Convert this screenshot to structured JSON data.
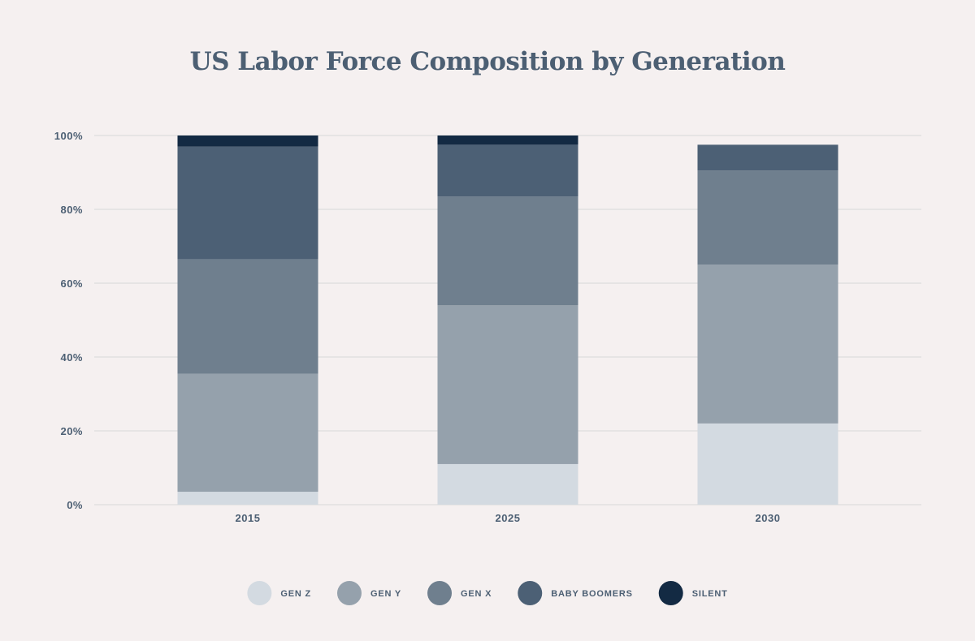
{
  "chart_data": {
    "type": "bar",
    "stacked": true,
    "title": "US Labor Force Composition by Generation",
    "categories": [
      "2015",
      "2025",
      "2030"
    ],
    "ylim": [
      0,
      100
    ],
    "y_ticks": [
      "0%",
      "20%",
      "40%",
      "60%",
      "80%",
      "100%"
    ],
    "grid": true,
    "legend_position": "bottom",
    "series": [
      {
        "name": "GEN Z",
        "color": "#d3dae1",
        "values": [
          3.5,
          11,
          22
        ]
      },
      {
        "name": "GEN Y",
        "color": "#95a1ac",
        "values": [
          32,
          43,
          43
        ]
      },
      {
        "name": "GEN X",
        "color": "#6f7f8e",
        "values": [
          31,
          29.5,
          25.5
        ]
      },
      {
        "name": "BABY BOOMERS",
        "color": "#4c6075",
        "values": [
          30.5,
          14,
          7
        ]
      },
      {
        "name": "SILENT",
        "color": "#132a43",
        "values": [
          3,
          2.5,
          0
        ]
      }
    ]
  },
  "colors": {
    "background": "#f5f0f0",
    "text": "#4c5f73",
    "grid": "#e2dfdf"
  }
}
